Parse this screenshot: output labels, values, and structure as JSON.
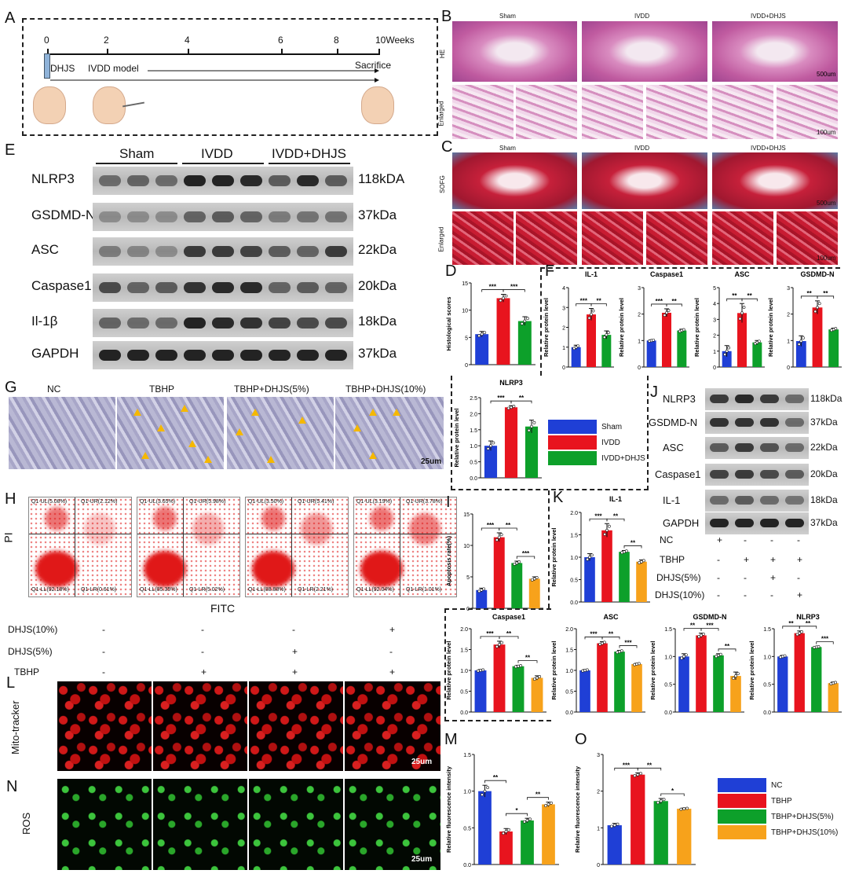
{
  "panels": {
    "A": "A",
    "B": "B",
    "C": "C",
    "D": "D",
    "E": "E",
    "F": "F",
    "G": "G",
    "H": "H",
    "I": "I",
    "J": "J",
    "K": "K",
    "L": "L",
    "M": "M",
    "N": "N",
    "O": "O"
  },
  "timeline": {
    "ticks": [
      "0",
      "2",
      "4",
      "6",
      "8",
      "10Weeks"
    ],
    "dhjs": "DHJS",
    "ivdd_model": "IVDD model",
    "sacrifice": "Sacrifice"
  },
  "histology": {
    "groups": [
      "Sham",
      "IVDD",
      "IVDD+DHJS"
    ],
    "he_label": "HE",
    "enlarged_label": "Enlarged",
    "sofg_label": "SOFG",
    "scale_500": "500um",
    "scale_100": "100um"
  },
  "western_E": {
    "groups": [
      "Sham",
      "IVDD",
      "IVDD+DHJS"
    ],
    "proteins": [
      "NLRP3",
      "GSDMD-N",
      "ASC",
      "Caspase1",
      "Il-1β",
      "GAPDH"
    ],
    "sizes": [
      "118kDA",
      "37kDa",
      "22kDa",
      "20kDa",
      "18kDa",
      "37kDa"
    ]
  },
  "western_J": {
    "proteins": [
      "NLRP3",
      "GSDMD-N",
      "ASC",
      "Caspase1",
      "IL-1",
      "GAPDH"
    ],
    "sizes": [
      "118kDa",
      "37kDa",
      "22kDa",
      "20kDa",
      "18kDa",
      "37kDa"
    ],
    "conditions": [
      {
        "name": "NC",
        "marks": [
          "+",
          "-",
          "-",
          "-"
        ]
      },
      {
        "name": "TBHP",
        "marks": [
          "-",
          "+",
          "+",
          "+"
        ]
      },
      {
        "name": "DHJS(5%)",
        "marks": [
          "-",
          "-",
          "+",
          "-"
        ]
      },
      {
        "name": "DHJS(10%)",
        "marks": [
          "-",
          "-",
          "-",
          "+"
        ]
      }
    ]
  },
  "phase_G": {
    "groups": [
      "NC",
      "TBHP",
      "TBHP+DHJS(5%)",
      "TBHP+DHJS(10%)"
    ],
    "scale": "25um"
  },
  "flow_H": {
    "ylabel": "PI",
    "xlabel": "FITC",
    "plots": [
      {
        "ul": "Q1-UL(5.08%)",
        "ur": "Q1-UR(2.12%)",
        "ll": "Q1-LL(92.18%)",
        "lr": "Q1-LR(0.61%)"
      },
      {
        "ul": "Q1-UL(3.65%)",
        "ur": "Q1-UR(5.98%)",
        "ll": "Q1-LL(85.35%)",
        "lr": "Q1-LR(5.02%)"
      },
      {
        "ul": "Q1-UL(3.50%)",
        "ur": "Q1-UR(5.41%)",
        "ll": "Q1-LL(88.88%)",
        "lr": "Q1-LR(2.21%)"
      },
      {
        "ul": "Q1-UL(3.19%)",
        "ur": "Q1-UR(3.78%)",
        "ll": "Q1-LL(92.04%)",
        "lr": "Q1-LR(1.01%)"
      }
    ]
  },
  "treatment_L": {
    "rows": [
      {
        "name": "DHJS(10%)",
        "marks": [
          "-",
          "-",
          "-",
          "+"
        ]
      },
      {
        "name": "DHJS(5%)",
        "marks": [
          "-",
          "-",
          "+",
          "-"
        ]
      },
      {
        "name": "TBHP",
        "marks": [
          "-",
          "+",
          "+",
          "+"
        ]
      }
    ],
    "mito_label": "Mito-tracker",
    "ros_label": "ROS",
    "scale": "25um"
  },
  "legend3": [
    "Sham",
    "IVDD",
    "IVDD+DHJS"
  ],
  "legend4": [
    "NC",
    "TBHP",
    "TBHP+DHJS(5%)",
    "TBHP+DHJS(10%)"
  ],
  "colors": {
    "blue": "#1f3fd6",
    "red": "#e8141e",
    "green": "#0da02a",
    "orange": "#f7a21b"
  },
  "chart_data": [
    {
      "id": "D",
      "type": "bar",
      "title": "",
      "ylabel": "Histological scores",
      "categories": [
        "Sham",
        "IVDD",
        "IVDD+DHJS"
      ],
      "values": [
        5.6,
        12.2,
        8.0
      ],
      "errors": [
        0.5,
        0.7,
        0.8
      ],
      "ylim": [
        0,
        15
      ],
      "yticks": [
        0,
        5,
        10,
        15
      ],
      "sig": [
        [
          "***",
          0,
          1
        ],
        [
          "***",
          1,
          2
        ]
      ]
    },
    {
      "id": "F1",
      "type": "bar",
      "title": "IL-1",
      "ylabel": "Relative protein level",
      "categories": [
        "Sham",
        "IVDD",
        "IVDD+DHJS"
      ],
      "values": [
        1.0,
        2.65,
        1.62
      ],
      "errors": [
        0.1,
        0.3,
        0.2
      ],
      "ylim": [
        0,
        4
      ],
      "yticks": [
        0,
        1,
        2,
        3,
        4
      ],
      "sig": [
        [
          "***",
          0,
          1
        ],
        [
          "**",
          1,
          2
        ]
      ]
    },
    {
      "id": "F2",
      "type": "bar",
      "title": "Caspase1",
      "ylabel": "Relative protein level",
      "categories": [
        "Sham",
        "IVDD",
        "IVDD+DHJS"
      ],
      "values": [
        1.0,
        2.05,
        1.38
      ],
      "errors": [
        0.03,
        0.15,
        0.05
      ],
      "ylim": [
        0,
        3
      ],
      "yticks": [
        0,
        1,
        2,
        3
      ],
      "sig": [
        [
          "***",
          0,
          1
        ],
        [
          "**",
          1,
          2
        ]
      ]
    },
    {
      "id": "F3",
      "type": "bar",
      "title": "ASC",
      "ylabel": "Relative protein level",
      "categories": [
        "Sham",
        "IVDD",
        "IVDD+DHJS"
      ],
      "values": [
        1.0,
        3.4,
        1.55
      ],
      "errors": [
        0.35,
        0.6,
        0.12
      ],
      "ylim": [
        0,
        5
      ],
      "yticks": [
        0,
        1,
        2,
        3,
        4,
        5
      ],
      "sig": [
        [
          "**",
          0,
          1
        ],
        [
          "**",
          1,
          2
        ]
      ]
    },
    {
      "id": "F4",
      "type": "bar",
      "title": "GSDMD-N",
      "ylabel": "Relative protein level",
      "categories": [
        "Sham",
        "IVDD",
        "IVDD+DHJS"
      ],
      "values": [
        0.98,
        2.25,
        1.42
      ],
      "errors": [
        0.2,
        0.25,
        0.05
      ],
      "ylim": [
        0,
        3
      ],
      "yticks": [
        0,
        1,
        2,
        3
      ],
      "sig": [
        [
          "**",
          0,
          1
        ],
        [
          "**",
          1,
          2
        ]
      ]
    },
    {
      "id": "F5",
      "type": "bar",
      "title": "NLRP3",
      "ylabel": "Relative protein level",
      "categories": [
        "Sham",
        "IVDD",
        "IVDD+DHJS"
      ],
      "values": [
        1.0,
        2.2,
        1.6
      ],
      "errors": [
        0.15,
        0.05,
        0.2
      ],
      "ylim": [
        0,
        2.5
      ],
      "yticks": [
        0,
        0.5,
        1.0,
        1.5,
        2.0,
        2.5
      ],
      "sig": [
        [
          "***",
          0,
          1
        ],
        [
          "**",
          1,
          2
        ]
      ]
    },
    {
      "id": "I",
      "type": "bar",
      "title": "",
      "ylabel": "Apoptosis rate(%)",
      "categories": [
        "NC",
        "TBHP",
        "TBHP+DHJS(5%)",
        "TBHP+DHJS(10%)"
      ],
      "values": [
        2.9,
        11.3,
        7.2,
        4.7
      ],
      "errors": [
        0.3,
        0.7,
        0.3,
        0.3
      ],
      "ylim": [
        0,
        15
      ],
      "yticks": [
        0,
        5,
        10,
        15
      ],
      "sig": [
        [
          "***",
          0,
          1
        ],
        [
          "**",
          1,
          2
        ],
        [
          "***",
          2,
          3
        ]
      ]
    },
    {
      "id": "K1",
      "type": "bar",
      "title": "IL-1",
      "ylabel": "Relative protein level",
      "categories": [
        "NC",
        "TBHP",
        "TBHP+DHJS(5%)",
        "TBHP+DHJS(10%)"
      ],
      "values": [
        1.0,
        1.6,
        1.12,
        0.9
      ],
      "errors": [
        0.08,
        0.15,
        0.03,
        0.04
      ],
      "ylim": [
        0,
        2.0
      ],
      "yticks": [
        0,
        0.5,
        1.0,
        1.5,
        2.0
      ],
      "sig": [
        [
          "***",
          0,
          1
        ],
        [
          "**",
          1,
          2
        ],
        [
          "**",
          2,
          3
        ]
      ]
    },
    {
      "id": "K2",
      "type": "bar",
      "title": "Caspase1",
      "ylabel": "Relative protein level",
      "categories": [
        "NC",
        "TBHP",
        "TBHP+DHJS(5%)",
        "TBHP+DHJS(10%)"
      ],
      "values": [
        1.0,
        1.62,
        1.1,
        0.82
      ],
      "errors": [
        0.02,
        0.08,
        0.02,
        0.05
      ],
      "ylim": [
        0,
        2.0
      ],
      "yticks": [
        0,
        0.5,
        1.0,
        1.5,
        2.0
      ],
      "sig": [
        [
          "***",
          0,
          1
        ],
        [
          "**",
          1,
          2
        ],
        [
          "**",
          2,
          3
        ]
      ]
    },
    {
      "id": "K3",
      "type": "bar",
      "title": "ASC",
      "ylabel": "Relative protein level",
      "categories": [
        "NC",
        "TBHP",
        "TBHP+DHJS(5%)",
        "TBHP+DHJS(10%)"
      ],
      "values": [
        1.0,
        1.65,
        1.45,
        1.15
      ],
      "errors": [
        0.02,
        0.04,
        0.03,
        0.02
      ],
      "ylim": [
        0,
        2.0
      ],
      "yticks": [
        0,
        0.5,
        1.0,
        1.5,
        2.0
      ],
      "sig": [
        [
          "***",
          0,
          1
        ],
        [
          "**",
          1,
          2
        ],
        [
          "***",
          2,
          3
        ]
      ]
    },
    {
      "id": "K4",
      "type": "bar",
      "title": "GSDMD-N",
      "ylabel": "Relative protein level",
      "categories": [
        "NC",
        "TBHP",
        "TBHP+DHJS(5%)",
        "TBHP+DHJS(10%)"
      ],
      "values": [
        1.0,
        1.38,
        1.02,
        0.65
      ],
      "errors": [
        0.05,
        0.04,
        0.03,
        0.07
      ],
      "ylim": [
        0,
        1.5
      ],
      "yticks": [
        0,
        0.5,
        1.0,
        1.5
      ],
      "sig": [
        [
          "**",
          0,
          1
        ],
        [
          "***",
          1,
          2
        ],
        [
          "**",
          2,
          3
        ]
      ]
    },
    {
      "id": "K5",
      "type": "bar",
      "title": "NLRP3",
      "ylabel": "Relative protein level",
      "categories": [
        "NC",
        "TBHP",
        "TBHP+DHJS(5%)",
        "TBHP+DHJS(10%)"
      ],
      "values": [
        1.0,
        1.42,
        1.17,
        0.52
      ],
      "errors": [
        0.02,
        0.04,
        0.01,
        0.02
      ],
      "ylim": [
        0,
        1.5
      ],
      "yticks": [
        0,
        0.5,
        1.0,
        1.5
      ],
      "sig": [
        [
          "**",
          0,
          1
        ],
        [
          "**",
          1,
          2
        ],
        [
          "***",
          2,
          3
        ]
      ]
    },
    {
      "id": "M",
      "type": "bar",
      "title": "",
      "ylabel": "Relative fluorescence intensity",
      "categories": [
        "NC",
        "TBHP",
        "TBHP+DHJS(5%)",
        "TBHP+DHJS(10%)"
      ],
      "values": [
        1.0,
        0.45,
        0.6,
        0.82
      ],
      "errors": [
        0.08,
        0.04,
        0.03,
        0.03
      ],
      "ylim": [
        0,
        1.5
      ],
      "yticks": [
        0,
        0.5,
        1.0,
        1.5
      ],
      "sig": [
        [
          "**",
          0,
          1
        ],
        [
          "*",
          1,
          2
        ],
        [
          "**",
          2,
          3
        ]
      ]
    },
    {
      "id": "O",
      "type": "bar",
      "title": "",
      "ylabel": "Relative fluorescence intensity",
      "categories": [
        "NC",
        "TBHP",
        "TBHP+DHJS(5%)",
        "TBHP+DHJS(10%)"
      ],
      "values": [
        1.07,
        2.45,
        1.73,
        1.52
      ],
      "errors": [
        0.05,
        0.05,
        0.07,
        0.02
      ],
      "ylim": [
        0,
        3
      ],
      "yticks": [
        0,
        1,
        2,
        3
      ],
      "sig": [
        [
          "***",
          0,
          1
        ],
        [
          "**",
          1,
          2
        ],
        [
          "*",
          2,
          3
        ]
      ]
    }
  ]
}
